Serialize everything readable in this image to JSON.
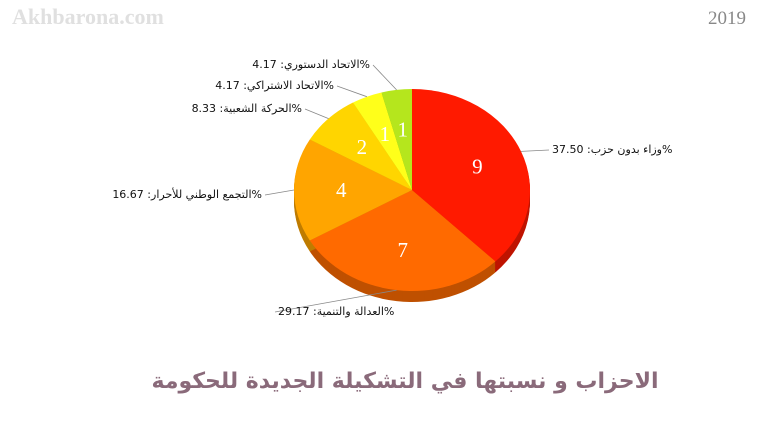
{
  "chart_data": {
    "type": "pie",
    "title": "الاحزاب و نسبتها في التشكيلة الجديدة للحكومة",
    "watermark": "Akhbarona.com",
    "subtitle": "2019",
    "categories": [
      "وزاء بدون حزب",
      "العدالة والتنمية",
      "التجمع الوطني للأحرار",
      "الحركة الشعبية",
      "الاتحاد الاشتراكي",
      "الاتحاد الدستوري"
    ],
    "values": [
      9,
      7,
      4,
      2,
      1,
      1
    ],
    "slice_labels": [
      "%وزاء بدون حزب: 37.50",
      "%العدالة والتنمية: 29.17",
      "%التجمع الوطني للأحرار: 16.67",
      "%الحركة الشعبية: 8.33",
      "%الاتحاد الاشتراكي: 4.17",
      "%الاتحاد الدستوري: 4.17"
    ],
    "colors": [
      "#ff1a00",
      "#ff6a00",
      "#ffa500",
      "#ffd500",
      "#ffff1a",
      "#b5e61d"
    ]
  }
}
